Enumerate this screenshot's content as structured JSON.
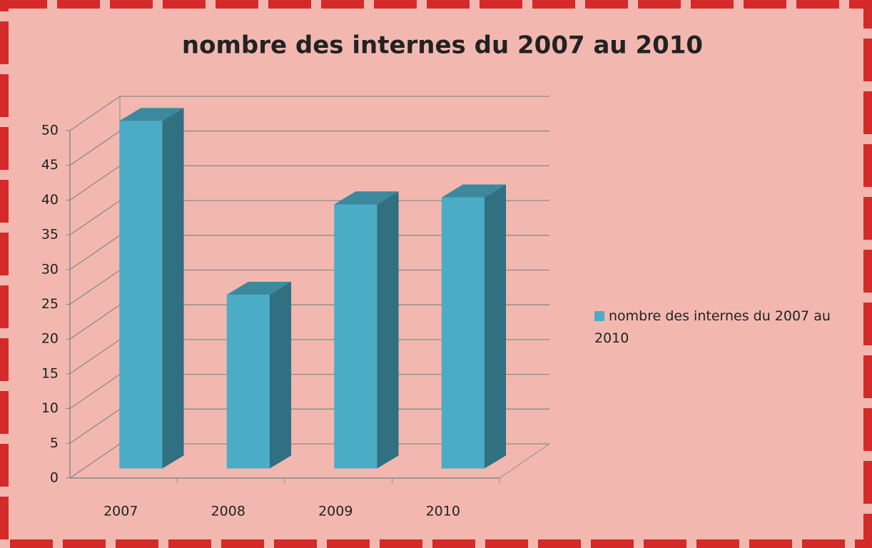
{
  "chart_data": {
    "type": "bar3d",
    "title": "nombre des internes du 2007 au 2010",
    "categories": [
      "2007",
      "2008",
      "2009",
      "2010"
    ],
    "series": [
      {
        "name": "nombre des internes du 2007 au 2010",
        "color": "#4bacc6",
        "values": [
          50,
          25,
          38,
          39
        ]
      }
    ],
    "ylim": [
      0,
      50
    ],
    "yticks": [
      0,
      5,
      10,
      15,
      20,
      25,
      30,
      35,
      40,
      45,
      50
    ],
    "grid": true,
    "legend": "right"
  }
}
